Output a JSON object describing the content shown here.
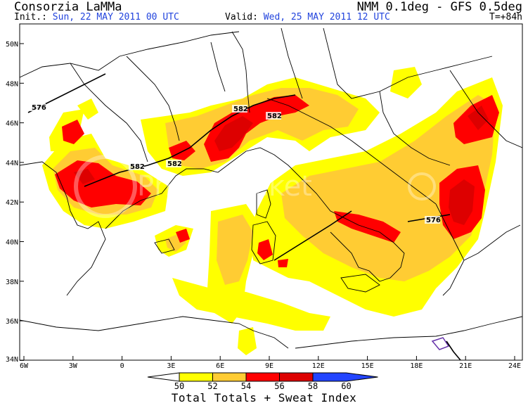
{
  "header": {
    "title": "Consorzia LaMMa",
    "init_label": "Init.:",
    "init_value": "Sun, 22 MAY 2011  00 UTC",
    "valid_label": "Valid:",
    "valid_value": "Wed, 25 MAY 2011  12 UTC",
    "model": "NMM 0.1deg - GFS 0.5deg",
    "forecast_step": "T=+84h"
  },
  "map": {
    "lat_labels": [
      "50N",
      "48N",
      "46N",
      "44N",
      "42N",
      "40N",
      "38N",
      "36N",
      "34N"
    ],
    "lon_labels": [
      "6W",
      "3W",
      "0",
      "3E",
      "6E",
      "9E",
      "12E",
      "15E",
      "18E",
      "21E",
      "24E"
    ],
    "contour_labels": [
      "576",
      "582",
      "582",
      "582",
      "582",
      "576"
    ],
    "watermark": "Photobucket"
  },
  "legend": {
    "ticks": [
      "50",
      "52",
      "54",
      "56",
      "58",
      "60"
    ],
    "colors": [
      "#ffff00",
      "#ffcc33",
      "#ff0000",
      "#dd0000",
      "#2244ff"
    ],
    "title": "Total Totals + Sweat Index"
  }
}
